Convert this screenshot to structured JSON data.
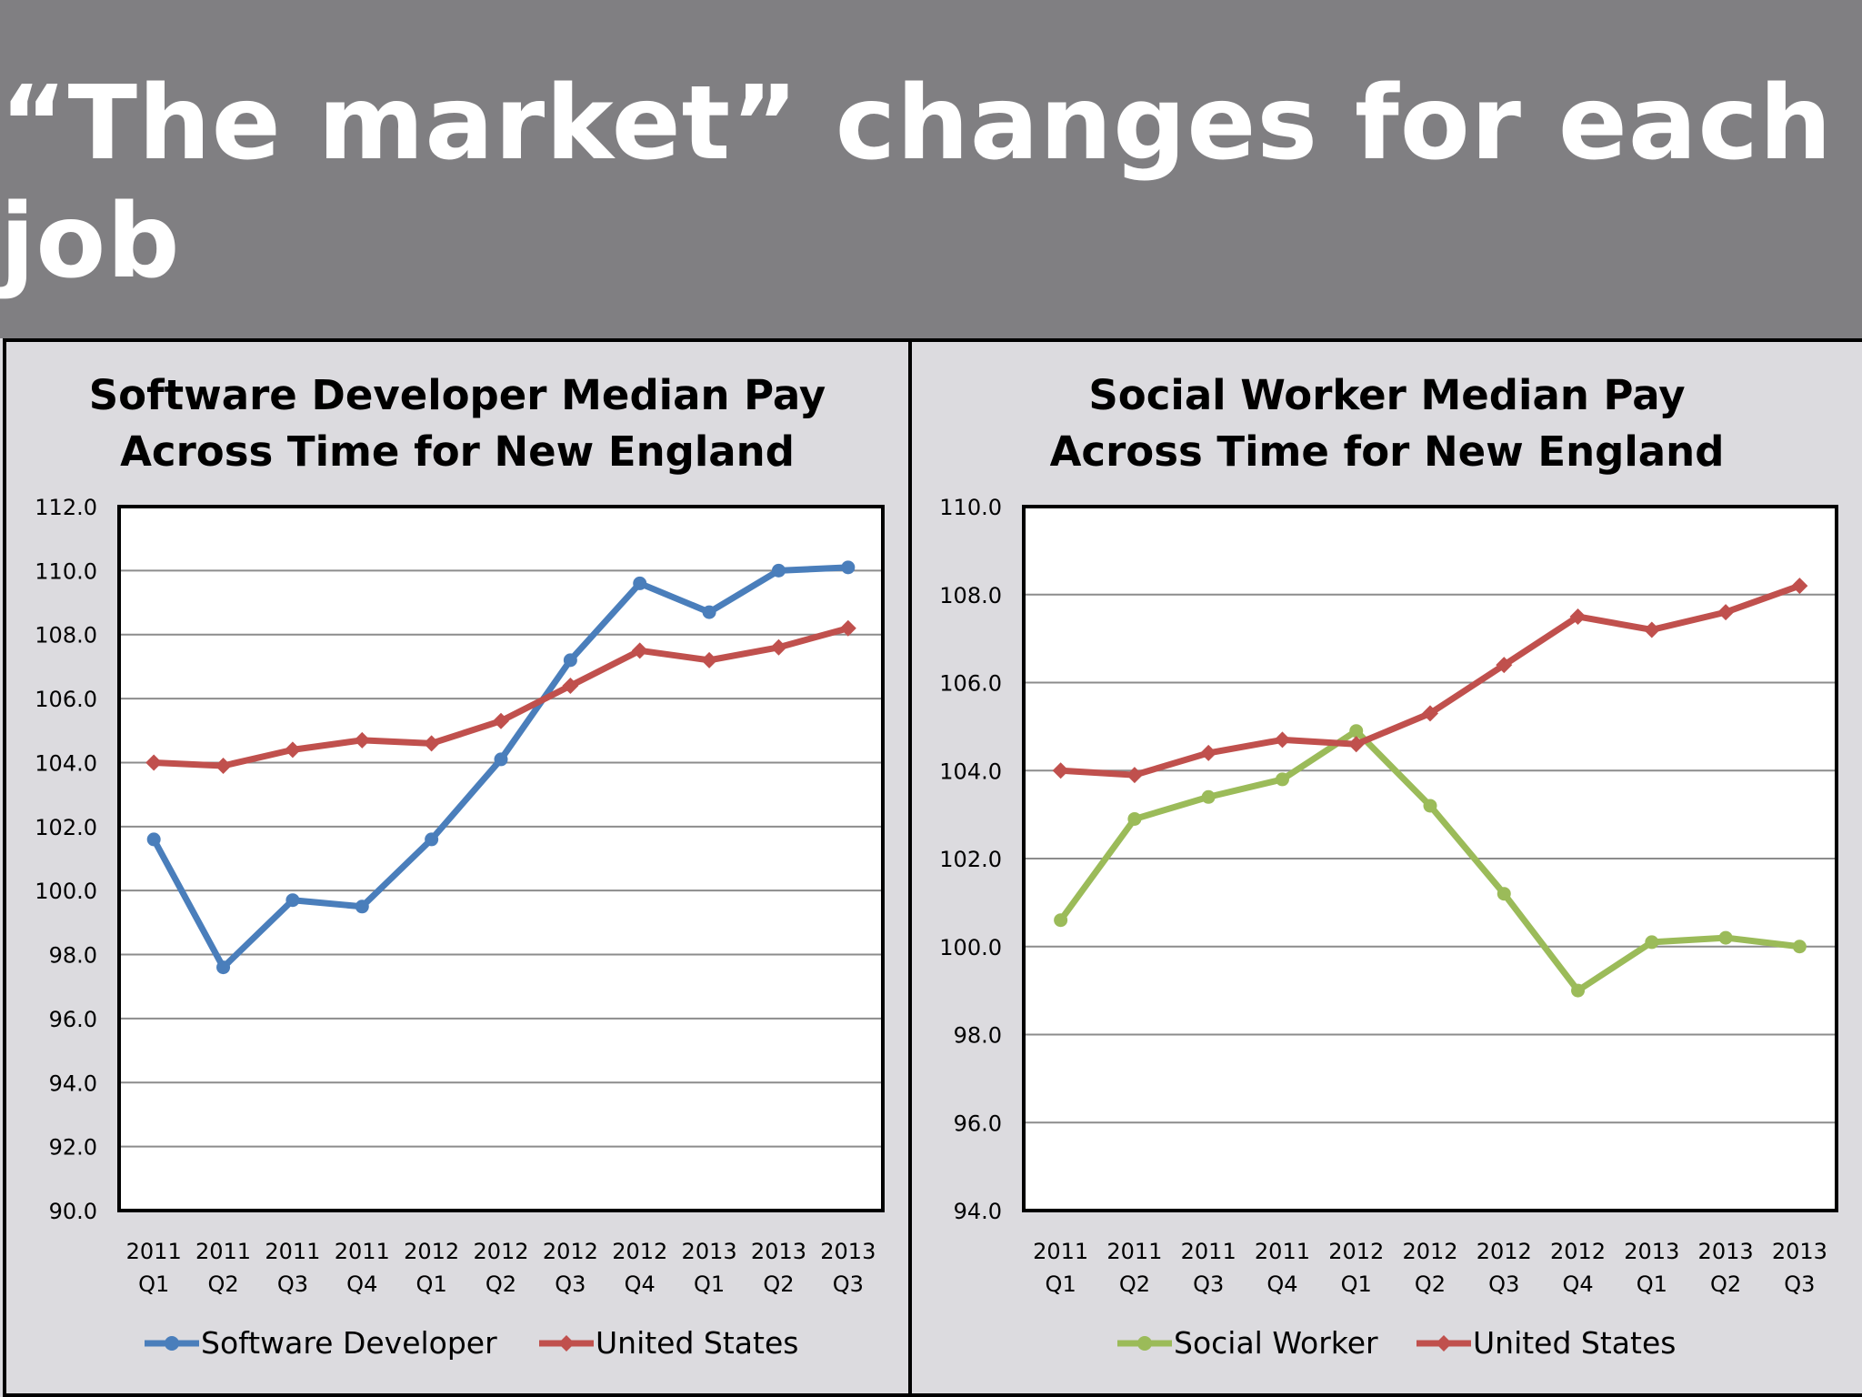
{
  "slide": {
    "title": "“The market” changes for each job"
  },
  "chart_data": [
    {
      "type": "line",
      "title_lines": [
        "Software Developer Median Pay",
        "Across Time for New England"
      ],
      "categories": [
        [
          "2011",
          "Q1"
        ],
        [
          "2011",
          "Q2"
        ],
        [
          "2011",
          "Q3"
        ],
        [
          "2011",
          "Q4"
        ],
        [
          "2012",
          "Q1"
        ],
        [
          "2012",
          "Q2"
        ],
        [
          "2012",
          "Q3"
        ],
        [
          "2012",
          "Q4"
        ],
        [
          "2013",
          "Q1"
        ],
        [
          "2013",
          "Q2"
        ],
        [
          "2013",
          "Q3"
        ]
      ],
      "ylim": [
        90,
        112
      ],
      "yticks": [
        "90.0",
        "92.0",
        "94.0",
        "96.0",
        "98.0",
        "100.0",
        "102.0",
        "104.0",
        "106.0",
        "108.0",
        "110.0",
        "112.0"
      ],
      "grid": true,
      "legend_position": "bottom",
      "series": [
        {
          "name": "Software Developer",
          "color": "#4a7ebb",
          "marker": "circle",
          "values": [
            101.6,
            97.6,
            99.7,
            99.5,
            101.6,
            104.1,
            107.2,
            109.6,
            108.7,
            110.0,
            110.1
          ]
        },
        {
          "name": "United States",
          "color": "#c0504d",
          "marker": "diamond",
          "values": [
            104.0,
            103.9,
            104.4,
            104.7,
            104.6,
            105.3,
            106.4,
            107.5,
            107.2,
            107.6,
            108.2
          ]
        }
      ]
    },
    {
      "type": "line",
      "title_lines": [
        "Social Worker Median Pay",
        "Across Time for New England"
      ],
      "categories": [
        [
          "2011",
          "Q1"
        ],
        [
          "2011",
          "Q2"
        ],
        [
          "2011",
          "Q3"
        ],
        [
          "2011",
          "Q4"
        ],
        [
          "2012",
          "Q1"
        ],
        [
          "2012",
          "Q2"
        ],
        [
          "2012",
          "Q3"
        ],
        [
          "2012",
          "Q4"
        ],
        [
          "2013",
          "Q1"
        ],
        [
          "2013",
          "Q2"
        ],
        [
          "2013",
          "Q3"
        ]
      ],
      "ylim": [
        94,
        110
      ],
      "yticks": [
        "94.0",
        "96.0",
        "98.0",
        "100.0",
        "102.0",
        "104.0",
        "106.0",
        "108.0",
        "110.0"
      ],
      "grid": true,
      "legend_position": "bottom",
      "series": [
        {
          "name": "Social Worker",
          "color": "#9bbb59",
          "marker": "circle",
          "values": [
            100.6,
            102.9,
            103.4,
            103.8,
            104.9,
            103.2,
            101.2,
            99.0,
            100.1,
            100.2,
            100.0
          ]
        },
        {
          "name": "United States",
          "color": "#c0504d",
          "marker": "diamond",
          "values": [
            104.0,
            103.9,
            104.4,
            104.7,
            104.6,
            105.3,
            106.4,
            107.5,
            107.2,
            107.6,
            108.2
          ]
        }
      ]
    }
  ]
}
